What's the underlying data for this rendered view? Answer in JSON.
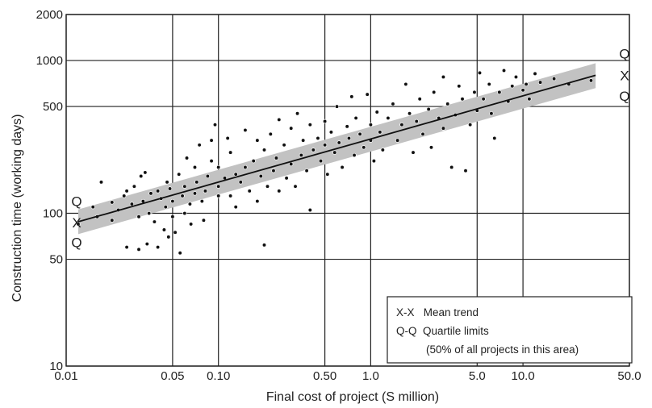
{
  "chart_data": {
    "type": "scatter",
    "title": "",
    "xlabel": "Final cost of project (S million)",
    "ylabel": "Construction time (working days)",
    "xscale": "log",
    "yscale": "log",
    "xlim": [
      0.01,
      50
    ],
    "ylim": [
      10,
      2000
    ],
    "x_ticks": [
      0.01,
      0.05,
      0.1,
      0.5,
      1.0,
      5.0,
      10.0,
      50.0
    ],
    "x_tick_labels": [
      "0.01",
      "0.05",
      "0.10",
      "0.50",
      "1.0",
      "5.0",
      "10.0",
      "50.0"
    ],
    "y_ticks": [
      10,
      50,
      100,
      500,
      1000,
      2000
    ],
    "y_tick_labels": [
      "10",
      "50",
      "100",
      "500",
      "1000",
      "2000"
    ],
    "grid": true,
    "band_colors": {
      "band": "#c2c2c2",
      "line": "#111111",
      "points": "#111111"
    },
    "mean_trend": {
      "x": [
        0.012,
        30
      ],
      "y": [
        88,
        800
      ]
    },
    "quartile_upper": {
      "x": [
        0.012,
        30
      ],
      "y": [
        106,
        960
      ]
    },
    "quartile_lower": {
      "x": [
        0.012,
        30
      ],
      "y": [
        73,
        660
      ]
    },
    "band_labels": {
      "left": [
        "Q",
        "X",
        "Q"
      ],
      "right": [
        "Q",
        "X",
        "Q"
      ]
    },
    "legend": {
      "placement": "bottom-right",
      "lines": [
        "X-X   Mean trend",
        "Q-Q  Quartile limits",
        "(50% of all projects in this area)"
      ]
    },
    "series": [
      {
        "points": [
          [
            0.012,
            85
          ],
          [
            0.015,
            110
          ],
          [
            0.016,
            95
          ],
          [
            0.017,
            160
          ],
          [
            0.02,
            90
          ],
          [
            0.02,
            118
          ],
          [
            0.022,
            105
          ],
          [
            0.024,
            130
          ],
          [
            0.025,
            140
          ],
          [
            0.025,
            60
          ],
          [
            0.027,
            115
          ],
          [
            0.028,
            150
          ],
          [
            0.03,
            58
          ],
          [
            0.03,
            95
          ],
          [
            0.031,
            175
          ],
          [
            0.032,
            120
          ],
          [
            0.033,
            185
          ],
          [
            0.034,
            63
          ],
          [
            0.035,
            100
          ],
          [
            0.036,
            135
          ],
          [
            0.038,
            88
          ],
          [
            0.04,
            140
          ],
          [
            0.04,
            60
          ],
          [
            0.042,
            125
          ],
          [
            0.044,
            78
          ],
          [
            0.045,
            110
          ],
          [
            0.046,
            160
          ],
          [
            0.047,
            70
          ],
          [
            0.048,
            145
          ],
          [
            0.05,
            95
          ],
          [
            0.05,
            120
          ],
          [
            0.052,
            75
          ],
          [
            0.055,
            180
          ],
          [
            0.056,
            55
          ],
          [
            0.058,
            130
          ],
          [
            0.06,
            100
          ],
          [
            0.06,
            150
          ],
          [
            0.062,
            230
          ],
          [
            0.065,
            115
          ],
          [
            0.066,
            85
          ],
          [
            0.07,
            200
          ],
          [
            0.07,
            135
          ],
          [
            0.072,
            160
          ],
          [
            0.075,
            280
          ],
          [
            0.078,
            120
          ],
          [
            0.08,
            90
          ],
          [
            0.082,
            140
          ],
          [
            0.085,
            175
          ],
          [
            0.09,
            220
          ],
          [
            0.09,
            300
          ],
          [
            0.095,
            380
          ],
          [
            0.1,
            150
          ],
          [
            0.1,
            200
          ],
          [
            0.1,
            130
          ],
          [
            0.11,
            170
          ],
          [
            0.115,
            310
          ],
          [
            0.12,
            130
          ],
          [
            0.12,
            250
          ],
          [
            0.13,
            180
          ],
          [
            0.13,
            110
          ],
          [
            0.14,
            160
          ],
          [
            0.15,
            200
          ],
          [
            0.15,
            350
          ],
          [
            0.16,
            140
          ],
          [
            0.17,
            220
          ],
          [
            0.18,
            300
          ],
          [
            0.18,
            120
          ],
          [
            0.19,
            175
          ],
          [
            0.2,
            260
          ],
          [
            0.2,
            62
          ],
          [
            0.21,
            150
          ],
          [
            0.22,
            330
          ],
          [
            0.23,
            190
          ],
          [
            0.24,
            230
          ],
          [
            0.25,
            410
          ],
          [
            0.25,
            140
          ],
          [
            0.27,
            280
          ],
          [
            0.28,
            170
          ],
          [
            0.3,
            360
          ],
          [
            0.3,
            210
          ],
          [
            0.32,
            150
          ],
          [
            0.33,
            450
          ],
          [
            0.35,
            240
          ],
          [
            0.36,
            300
          ],
          [
            0.38,
            190
          ],
          [
            0.4,
            380
          ],
          [
            0.4,
            105
          ],
          [
            0.42,
            260
          ],
          [
            0.45,
            310
          ],
          [
            0.47,
            220
          ],
          [
            0.5,
            400
          ],
          [
            0.5,
            280
          ],
          [
            0.52,
            180
          ],
          [
            0.55,
            340
          ],
          [
            0.58,
            250
          ],
          [
            0.6,
            500
          ],
          [
            0.62,
            290
          ],
          [
            0.65,
            200
          ],
          [
            0.7,
            370
          ],
          [
            0.72,
            310
          ],
          [
            0.75,
            580
          ],
          [
            0.78,
            240
          ],
          [
            0.8,
            420
          ],
          [
            0.85,
            330
          ],
          [
            0.9,
            270
          ],
          [
            0.95,
            600
          ],
          [
            1.0,
            380
          ],
          [
            1.0,
            300
          ],
          [
            1.05,
            220
          ],
          [
            1.1,
            460
          ],
          [
            1.15,
            340
          ],
          [
            1.2,
            260
          ],
          [
            1.3,
            420
          ],
          [
            1.4,
            520
          ],
          [
            1.5,
            300
          ],
          [
            1.6,
            380
          ],
          [
            1.7,
            700
          ],
          [
            1.8,
            450
          ],
          [
            1.9,
            250
          ],
          [
            2.0,
            400
          ],
          [
            2.1,
            560
          ],
          [
            2.2,
            330
          ],
          [
            2.4,
            480
          ],
          [
            2.5,
            270
          ],
          [
            2.6,
            620
          ],
          [
            2.8,
            420
          ],
          [
            3.0,
            780
          ],
          [
            3.0,
            360
          ],
          [
            3.2,
            520
          ],
          [
            3.4,
            200
          ],
          [
            3.6,
            440
          ],
          [
            3.8,
            680
          ],
          [
            4.0,
            560
          ],
          [
            4.2,
            190
          ],
          [
            4.5,
            380
          ],
          [
            4.8,
            620
          ],
          [
            5.0,
            470
          ],
          [
            5.2,
            830
          ],
          [
            5.5,
            560
          ],
          [
            6.0,
            700
          ],
          [
            6.2,
            450
          ],
          [
            6.5,
            310
          ],
          [
            7.0,
            620
          ],
          [
            7.5,
            860
          ],
          [
            8.0,
            540
          ],
          [
            8.5,
            680
          ],
          [
            9.0,
            780
          ],
          [
            10.0,
            640
          ],
          [
            10.5,
            700
          ],
          [
            11.0,
            560
          ],
          [
            12.0,
            820
          ],
          [
            13.0,
            720
          ],
          [
            16.0,
            760
          ],
          [
            20.0,
            700
          ],
          [
            28.0,
            740
          ]
        ]
      }
    ]
  }
}
